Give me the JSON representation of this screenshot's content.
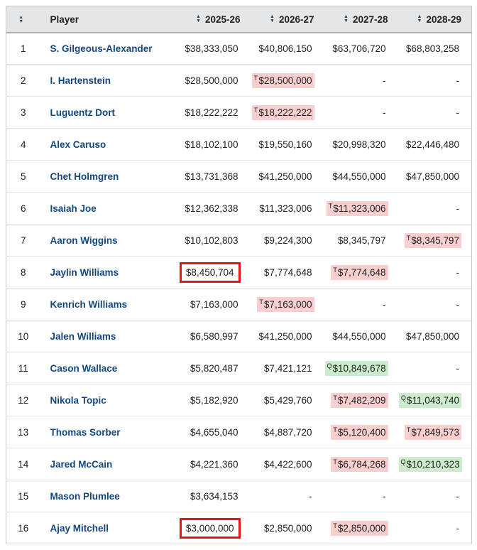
{
  "colors": {
    "team_option_bg": "#f8cfcf",
    "qualifying_offer_bg": "#cdeccd",
    "player_link": "#13477e",
    "annotation_box": "#e31515",
    "header_bg": "#e4e7e9"
  },
  "icons": {
    "sort_icon": "▲▼"
  },
  "table": {
    "columns": [
      "Player",
      "2025-26",
      "2026-27",
      "2027-28",
      "2028-29"
    ],
    "rows": [
      {
        "rank": "1",
        "player": "S. Gilgeous-Alexander",
        "salaries": [
          {
            "value": "$38,333,050"
          },
          {
            "value": "$40,806,150"
          },
          {
            "value": "$63,706,720"
          },
          {
            "value": "$68,803,258"
          }
        ]
      },
      {
        "rank": "2",
        "player": "I. Hartenstein",
        "salaries": [
          {
            "value": "$28,500,000"
          },
          {
            "value": "$28,500,000",
            "prefix": "T",
            "highlight": "pink"
          },
          {
            "value": "-"
          },
          {
            "value": "-"
          }
        ]
      },
      {
        "rank": "3",
        "player": "Luguentz Dort",
        "salaries": [
          {
            "value": "$18,222,222"
          },
          {
            "value": "$18,222,222",
            "prefix": "T",
            "highlight": "pink"
          },
          {
            "value": "-"
          },
          {
            "value": "-"
          }
        ]
      },
      {
        "rank": "4",
        "player": "Alex Caruso",
        "salaries": [
          {
            "value": "$18,102,100"
          },
          {
            "value": "$19,550,160"
          },
          {
            "value": "$20,998,320"
          },
          {
            "value": "$22,446,480"
          }
        ]
      },
      {
        "rank": "5",
        "player": "Chet Holmgren",
        "salaries": [
          {
            "value": "$13,731,368"
          },
          {
            "value": "$41,250,000"
          },
          {
            "value": "$44,550,000"
          },
          {
            "value": "$47,850,000"
          }
        ]
      },
      {
        "rank": "6",
        "player": "Isaiah Joe",
        "salaries": [
          {
            "value": "$12,362,338"
          },
          {
            "value": "$11,323,006"
          },
          {
            "value": "$11,323,006",
            "prefix": "T",
            "highlight": "pink"
          },
          {
            "value": "-"
          }
        ]
      },
      {
        "rank": "7",
        "player": "Aaron Wiggins",
        "salaries": [
          {
            "value": "$10,102,803"
          },
          {
            "value": "$9,224,300"
          },
          {
            "value": "$8,345,797"
          },
          {
            "value": "$8,345,797",
            "prefix": "T",
            "highlight": "pink"
          }
        ]
      },
      {
        "rank": "8",
        "player": "Jaylin Williams",
        "salaries": [
          {
            "value": "$8,450,704",
            "red_box": true
          },
          {
            "value": "$7,774,648"
          },
          {
            "value": "$7,774,648",
            "prefix": "T",
            "highlight": "pink"
          },
          {
            "value": "-"
          }
        ]
      },
      {
        "rank": "9",
        "player": "Kenrich Williams",
        "salaries": [
          {
            "value": "$7,163,000"
          },
          {
            "value": "$7,163,000",
            "prefix": "T",
            "highlight": "pink"
          },
          {
            "value": "-"
          },
          {
            "value": "-"
          }
        ]
      },
      {
        "rank": "10",
        "player": "Jalen Williams",
        "salaries": [
          {
            "value": "$6,580,997"
          },
          {
            "value": "$41,250,000"
          },
          {
            "value": "$44,550,000"
          },
          {
            "value": "$47,850,000"
          }
        ]
      },
      {
        "rank": "11",
        "player": "Cason Wallace",
        "salaries": [
          {
            "value": "$5,820,487"
          },
          {
            "value": "$7,421,121"
          },
          {
            "value": "$10,849,678",
            "prefix": "Q",
            "highlight": "green"
          },
          {
            "value": "-"
          }
        ]
      },
      {
        "rank": "12",
        "player": "Nikola Topic",
        "salaries": [
          {
            "value": "$5,182,920"
          },
          {
            "value": "$5,429,760"
          },
          {
            "value": "$7,482,209",
            "prefix": "T",
            "highlight": "pink"
          },
          {
            "value": "$11,043,740",
            "prefix": "Q",
            "highlight": "green"
          }
        ]
      },
      {
        "rank": "13",
        "player": "Thomas Sorber",
        "salaries": [
          {
            "value": "$4,655,040"
          },
          {
            "value": "$4,887,720"
          },
          {
            "value": "$5,120,400",
            "prefix": "T",
            "highlight": "pink"
          },
          {
            "value": "$7,849,573",
            "prefix": "T",
            "highlight": "pink"
          }
        ]
      },
      {
        "rank": "14",
        "player": "Jared McCain",
        "salaries": [
          {
            "value": "$4,221,360"
          },
          {
            "value": "$4,422,600"
          },
          {
            "value": "$6,784,268",
            "prefix": "T",
            "highlight": "pink"
          },
          {
            "value": "$10,210,323",
            "prefix": "Q",
            "highlight": "green"
          }
        ]
      },
      {
        "rank": "15",
        "player": "Mason Plumlee",
        "salaries": [
          {
            "value": "$3,634,153"
          },
          {
            "value": "-"
          },
          {
            "value": "-"
          },
          {
            "value": "-"
          }
        ]
      },
      {
        "rank": "16",
        "player": "Ajay Mitchell",
        "salaries": [
          {
            "value": "$3,000,000",
            "red_box": true
          },
          {
            "value": "$2,850,000"
          },
          {
            "value": "$2,850,000",
            "prefix": "T",
            "highlight": "pink"
          },
          {
            "value": "-"
          }
        ]
      }
    ]
  }
}
